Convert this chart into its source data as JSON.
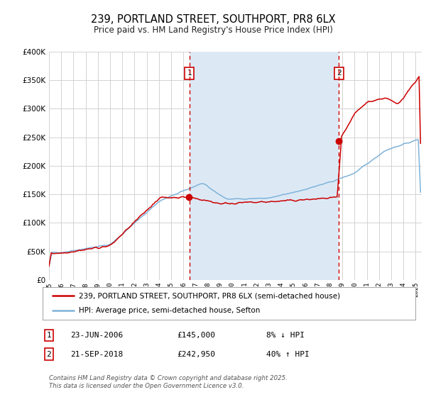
{
  "title": "239, PORTLAND STREET, SOUTHPORT, PR8 6LX",
  "subtitle": "Price paid vs. HM Land Registry's House Price Index (HPI)",
  "title_fontsize": 10.5,
  "subtitle_fontsize": 8.5,
  "background_color": "#ffffff",
  "plot_bg_color": "#ffffff",
  "shade_color": "#dce9f5",
  "grid_color": "#cccccc",
  "legend_label_property": "239, PORTLAND STREET, SOUTHPORT, PR8 6LX (semi-detached house)",
  "legend_label_hpi": "HPI: Average price, semi-detached house, Sefton",
  "property_color": "#cc0000",
  "hpi_color": "#7fb3d9",
  "marker1_date_x": 2006.48,
  "marker2_date_x": 2018.72,
  "marker1_price": 145000,
  "marker2_price": 242950,
  "annotation1_date": "23-JUN-2006",
  "annotation1_price": "£145,000",
  "annotation1_hpi": "8% ↓ HPI",
  "annotation2_date": "21-SEP-2018",
  "annotation2_price": "£242,950",
  "annotation2_hpi": "40% ↑ HPI",
  "footer": "Contains HM Land Registry data © Crown copyright and database right 2025.\nThis data is licensed under the Open Government Licence v3.0.",
  "ylim_min": 0,
  "ylim_max": 400000,
  "xlim_min": 1995,
  "xlim_max": 2025.5
}
